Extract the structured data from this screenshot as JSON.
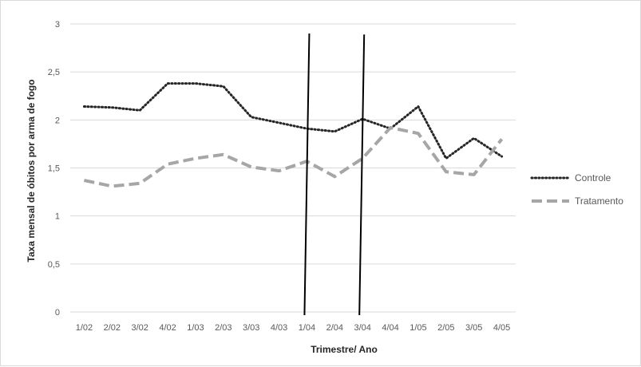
{
  "chart_data": {
    "type": "line",
    "title": "",
    "xlabel": "Trimestre/ Ano",
    "ylabel": "Taxa mensal de óbitos por arma de fogo",
    "categories": [
      "1/02",
      "2/02",
      "3/02",
      "4/02",
      "1/03",
      "2/03",
      "3/03",
      "4/03",
      "1/04",
      "2/04",
      "3/04",
      "4/04",
      "1/05",
      "2/05",
      "3/05",
      "4/05"
    ],
    "y_ticks": [
      "0",
      "0,5",
      "1",
      "1,5",
      "2",
      "2,5",
      "3"
    ],
    "ylim": [
      0,
      3
    ],
    "grid": true,
    "legend_position": "right",
    "series": [
      {
        "name": "Controle",
        "style": "dotted",
        "color": "#262626",
        "values": [
          2.14,
          2.13,
          2.1,
          2.38,
          2.38,
          2.35,
          2.03,
          1.97,
          1.91,
          1.88,
          2.01,
          1.91,
          2.14,
          1.6,
          1.81,
          1.62
        ]
      },
      {
        "name": "Tratamento",
        "style": "dashed",
        "color": "#a6a6a6",
        "values": [
          1.37,
          1.31,
          1.34,
          1.54,
          1.6,
          1.64,
          1.51,
          1.47,
          1.57,
          1.41,
          1.6,
          1.92,
          1.86,
          1.46,
          1.43,
          1.8
        ]
      }
    ],
    "vertical_markers": [
      {
        "color": "#000000",
        "x_start": "1/04",
        "x_end": "1/04",
        "y_top": 2.9,
        "y_bottom": 0
      },
      {
        "color": "#000000",
        "x_start": "3/04",
        "x_end": "3/04",
        "y_top": 2.89,
        "y_bottom": 0
      }
    ]
  }
}
